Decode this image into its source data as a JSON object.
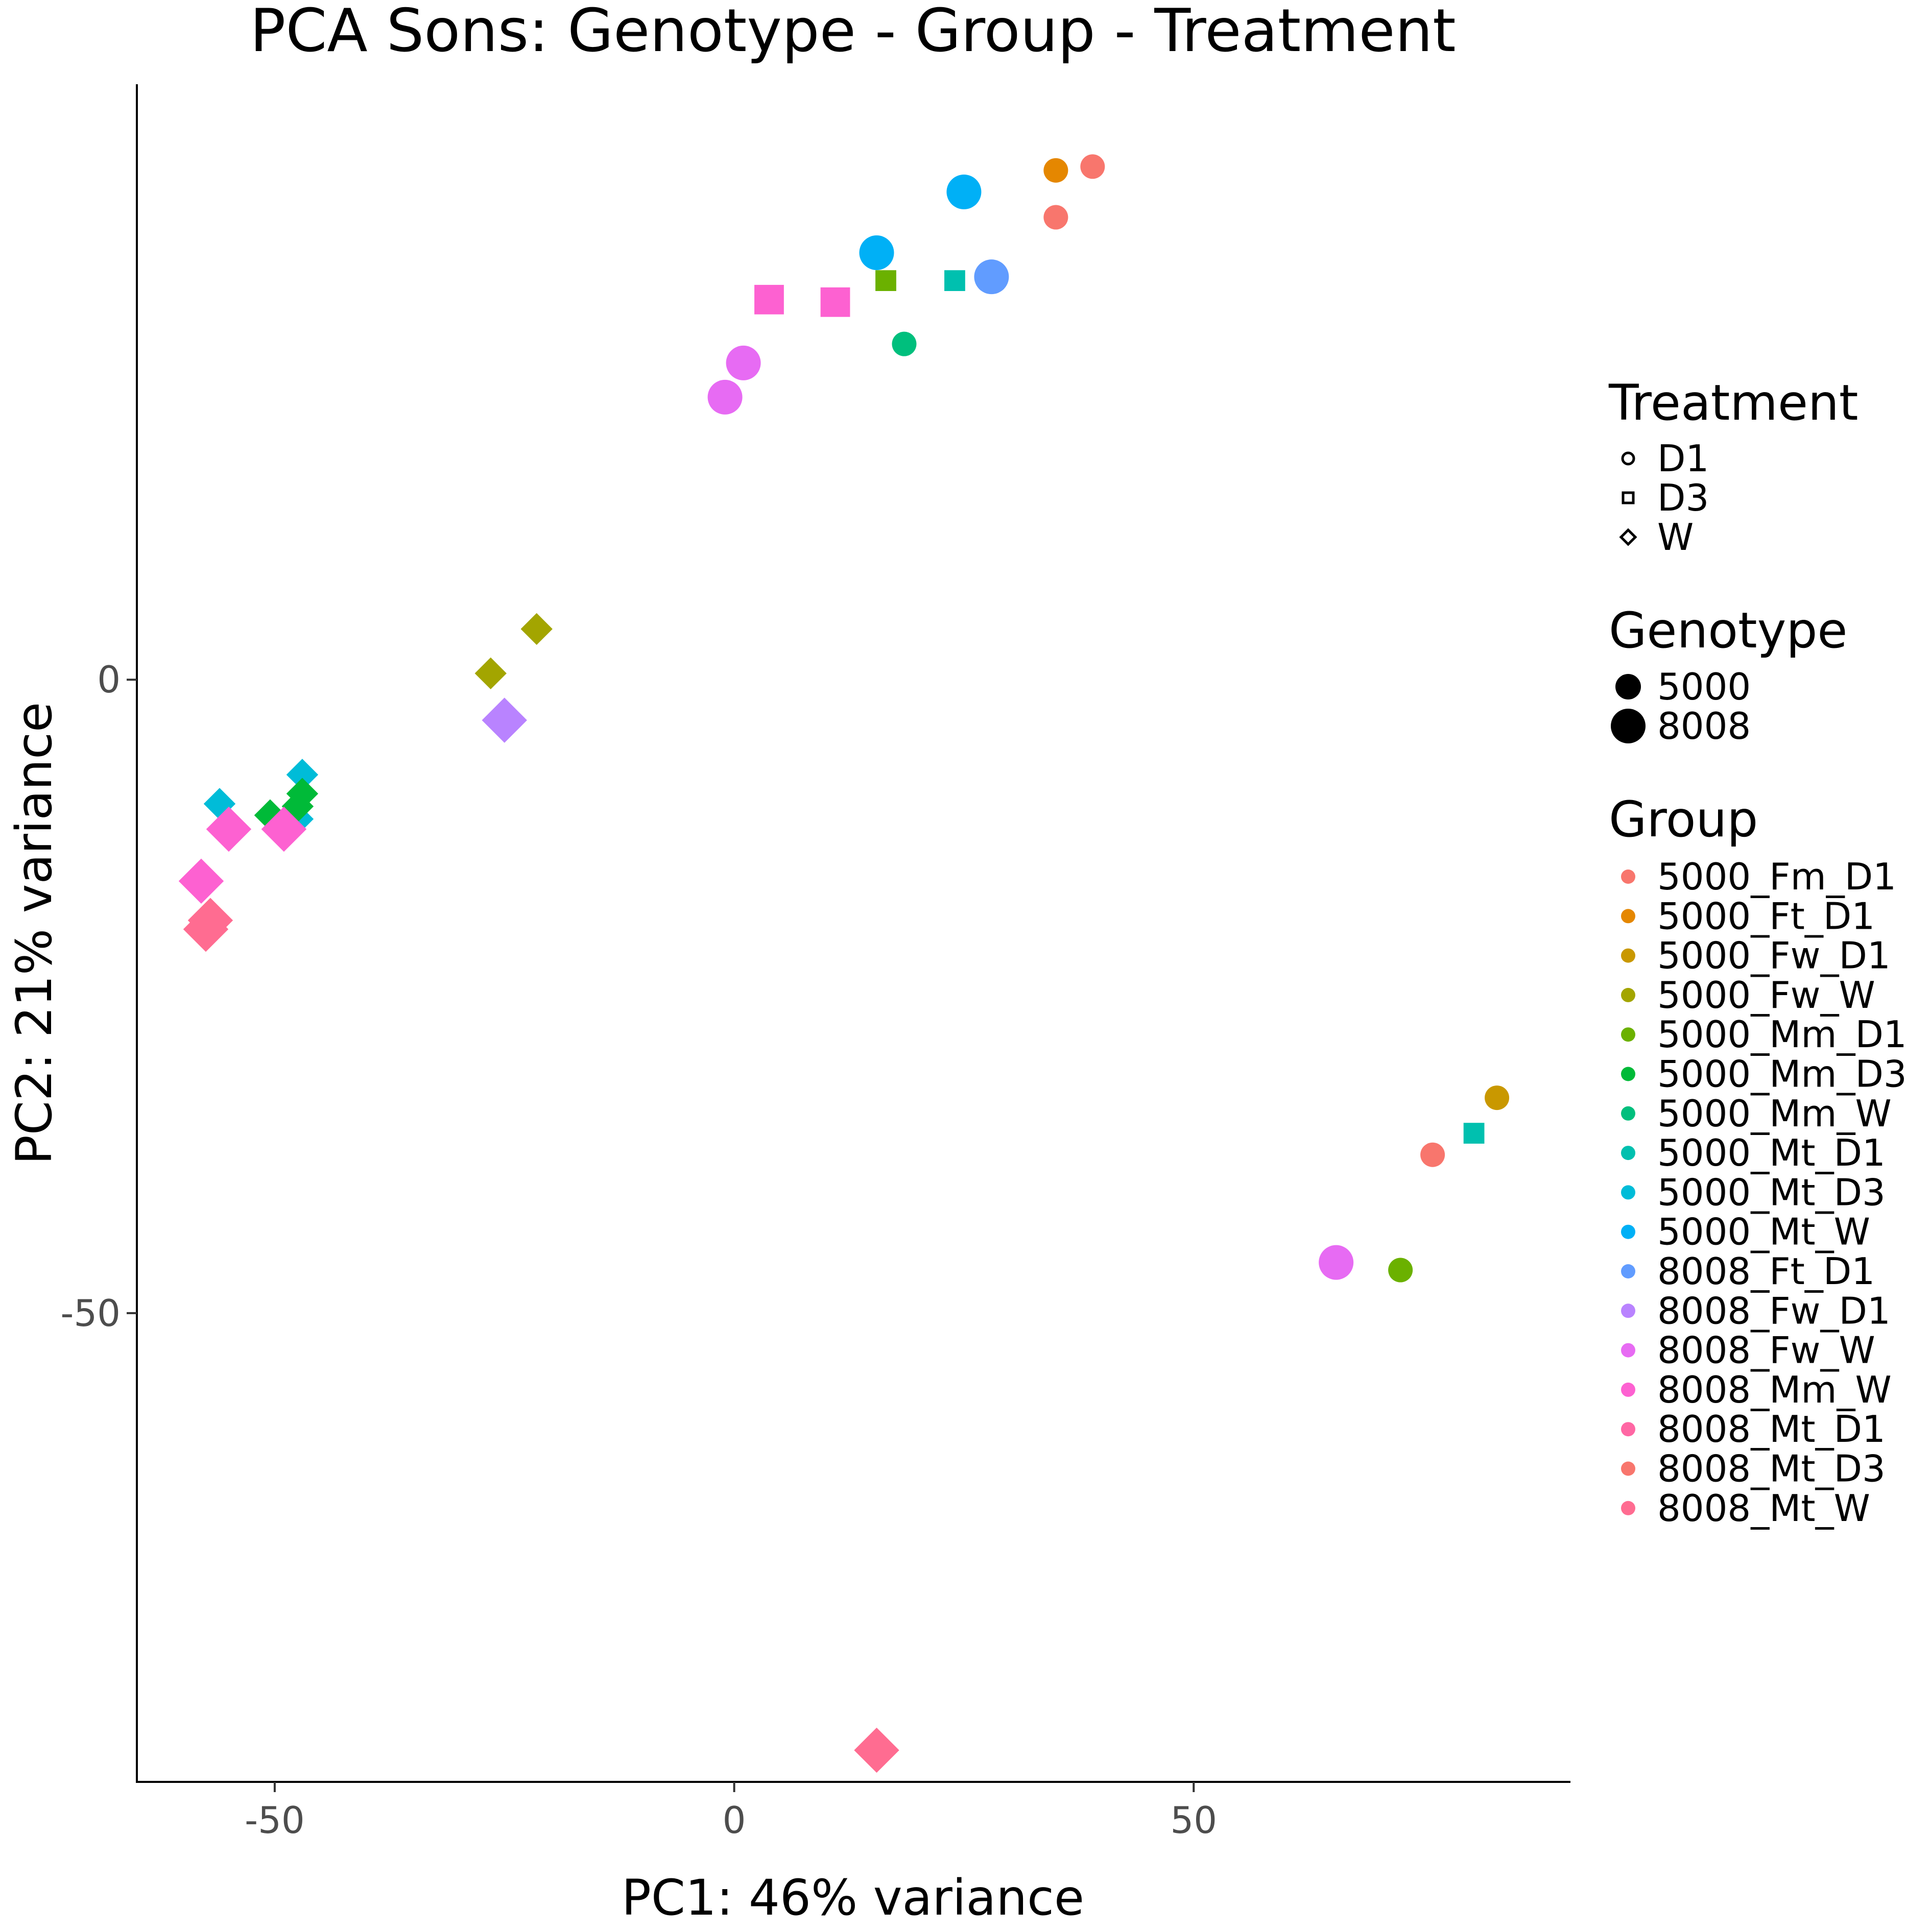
{
  "chart_data": {
    "type": "scatter",
    "title": "PCA Sons: Genotype - Group - Treatment",
    "xlabel": "PC1: 46% variance",
    "ylabel": "PC2: 21% variance",
    "xlim": [
      -65,
      91
    ],
    "ylim": [
      -87,
      47
    ],
    "x_ticks": [
      -50,
      0,
      50
    ],
    "y_ticks": [
      0,
      -50
    ],
    "x_tick_labels": [
      "-50",
      "0",
      "50"
    ],
    "y_tick_labels": [
      "0",
      "-50"
    ],
    "grid": false,
    "legend_position": "right",
    "legends": {
      "treatment": {
        "title": "Treatment",
        "items": [
          {
            "label": "D1",
            "shape": "circle"
          },
          {
            "label": "D3",
            "shape": "square"
          },
          {
            "label": "W",
            "shape": "diamond"
          }
        ]
      },
      "genotype": {
        "title": "Genotype",
        "items": [
          {
            "label": "5000",
            "size": "small"
          },
          {
            "label": "8008",
            "size": "large"
          }
        ]
      },
      "group": {
        "title": "Group",
        "items": [
          {
            "label": "5000_Fm_D1",
            "color": "#F8766D"
          },
          {
            "label": "5000_Ft_D1",
            "color": "#E58700"
          },
          {
            "label": "5000_Fw_D1",
            "color": "#C99800"
          },
          {
            "label": "5000_Fw_W",
            "color": "#A3A500"
          },
          {
            "label": "5000_Mm_D1",
            "color": "#6BB100"
          },
          {
            "label": "5000_Mm_D3",
            "color": "#00BA38"
          },
          {
            "label": "5000_Mm_W",
            "color": "#00BF7D"
          },
          {
            "label": "5000_Mt_D1",
            "color": "#00C0AF"
          },
          {
            "label": "5000_Mt_D3",
            "color": "#00BCD8"
          },
          {
            "label": "5000_Mt_W",
            "color": "#00B0F6"
          },
          {
            "label": "8008_Ft_D1",
            "color": "#619CFF"
          },
          {
            "label": "8008_Fw_D1",
            "color": "#B983FF"
          },
          {
            "label": "8008_Fw_W",
            "color": "#E76BF3"
          },
          {
            "label": "8008_Mm_W",
            "color": "#FD61D1"
          },
          {
            "label": "8008_Mt_D1",
            "color": "#FF67A4"
          },
          {
            "label": "8008_Mt_D3",
            "color": "#F8766D"
          },
          {
            "label": "8008_Mt_W",
            "color": "#FF6C91"
          }
        ]
      }
    },
    "points": [
      {
        "x": 39,
        "y": 40.5,
        "color": "#F8766D",
        "shape": "circle",
        "size": "small"
      },
      {
        "x": 35,
        "y": 40.2,
        "color": "#E58700",
        "shape": "circle",
        "size": "small"
      },
      {
        "x": 35,
        "y": 36.5,
        "color": "#F8766D",
        "shape": "circle",
        "size": "small"
      },
      {
        "x": 25,
        "y": 38.5,
        "color": "#00B0F6",
        "shape": "circle",
        "size": "large"
      },
      {
        "x": 15.5,
        "y": 33.7,
        "color": "#00B0F6",
        "shape": "circle",
        "size": "large"
      },
      {
        "x": 28,
        "y": 31.8,
        "color": "#619CFF",
        "shape": "circle",
        "size": "large"
      },
      {
        "x": 16.5,
        "y": 31.5,
        "color": "#6BB100",
        "shape": "square",
        "size": "small"
      },
      {
        "x": 24,
        "y": 31.5,
        "color": "#00C0AF",
        "shape": "square",
        "size": "small"
      },
      {
        "x": 3.8,
        "y": 30,
        "color": "#FD61D1",
        "shape": "square",
        "size": "large"
      },
      {
        "x": 11,
        "y": 29.8,
        "color": "#FD61D1",
        "shape": "square",
        "size": "large"
      },
      {
        "x": 18.5,
        "y": 26.5,
        "color": "#00BF7D",
        "shape": "circle",
        "size": "small"
      },
      {
        "x": 1,
        "y": 25,
        "color": "#E76BF3",
        "shape": "circle",
        "size": "large"
      },
      {
        "x": -1,
        "y": 22.3,
        "color": "#E76BF3",
        "shape": "circle",
        "size": "large"
      },
      {
        "x": -21.5,
        "y": 4,
        "color": "#A3A500",
        "shape": "diamond",
        "size": "small"
      },
      {
        "x": -26.5,
        "y": 0.5,
        "color": "#A3A500",
        "shape": "diamond",
        "size": "small"
      },
      {
        "x": -25,
        "y": -3.2,
        "color": "#B983FF",
        "shape": "diamond",
        "size": "large"
      },
      {
        "x": -47,
        "y": -7.5,
        "color": "#00BCD8",
        "shape": "diamond",
        "size": "small"
      },
      {
        "x": -47,
        "y": -9,
        "color": "#00BA38",
        "shape": "diamond",
        "size": "small"
      },
      {
        "x": -47.5,
        "y": -11,
        "color": "#00BCD8",
        "shape": "diamond",
        "size": "small"
      },
      {
        "x": -50.5,
        "y": -10.7,
        "color": "#00BA38",
        "shape": "diamond",
        "size": "small"
      },
      {
        "x": -47.5,
        "y": -10,
        "color": "#00BA38",
        "shape": "diamond",
        "size": "small"
      },
      {
        "x": -56,
        "y": -9.8,
        "color": "#00BCD8",
        "shape": "diamond",
        "size": "small"
      },
      {
        "x": -55,
        "y": -11.8,
        "color": "#FD61D1",
        "shape": "diamond",
        "size": "large"
      },
      {
        "x": -49,
        "y": -11.8,
        "color": "#FD61D1",
        "shape": "diamond",
        "size": "large"
      },
      {
        "x": -58,
        "y": -15.9,
        "color": "#FD61D1",
        "shape": "diamond",
        "size": "large"
      },
      {
        "x": -57,
        "y": -19,
        "color": "#FF6C91",
        "shape": "diamond",
        "size": "large"
      },
      {
        "x": -57.5,
        "y": -19.7,
        "color": "#FF6C91",
        "shape": "diamond",
        "size": "large"
      },
      {
        "x": 83,
        "y": -33,
        "color": "#C99800",
        "shape": "circle",
        "size": "small"
      },
      {
        "x": 80.5,
        "y": -35.8,
        "color": "#00C0AF",
        "shape": "square",
        "size": "small"
      },
      {
        "x": 76,
        "y": -37.5,
        "color": "#F8766D",
        "shape": "circle",
        "size": "small"
      },
      {
        "x": 65.5,
        "y": -46,
        "color": "#E76BF3",
        "shape": "circle",
        "size": "large"
      },
      {
        "x": 72.5,
        "y": -46.6,
        "color": "#6BB100",
        "shape": "circle",
        "size": "small"
      },
      {
        "x": 15.5,
        "y": -84.5,
        "color": "#FF6C91",
        "shape": "diamond",
        "size": "large"
      }
    ]
  }
}
